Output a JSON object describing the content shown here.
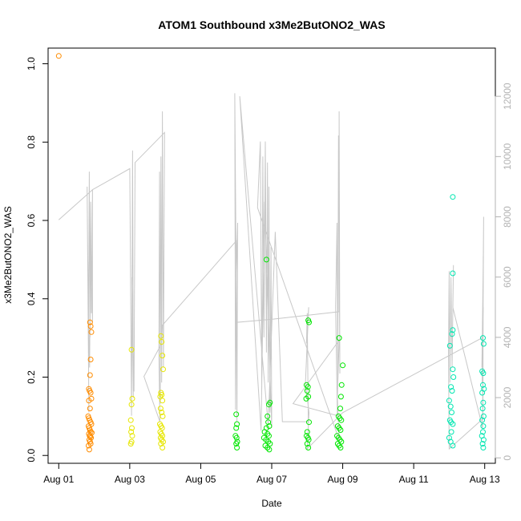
{
  "chart_data": {
    "type": "scatter",
    "title": "ATOM1 Southbound x3Me2ButONO2_WAS",
    "xlabel": "Date",
    "ylabel": "x3Me2ButONO2_WAS",
    "x_ticks": [
      "Aug 01",
      "Aug 03",
      "Aug 05",
      "Aug 07",
      "Aug 09",
      "Aug 11",
      "Aug 13"
    ],
    "x_tick_days": [
      1,
      3,
      5,
      7,
      9,
      11,
      13
    ],
    "xlim": [
      0.7,
      13.3
    ],
    "ylim": [
      -0.02,
      1.04
    ],
    "y_ticks": [
      "0.0",
      "0.2",
      "0.4",
      "0.6",
      "0.8",
      "1.0"
    ],
    "y_tick_values": [
      0,
      0.2,
      0.4,
      0.6,
      0.8,
      1.0
    ],
    "y2_ticks": [
      "0",
      "2000",
      "4000",
      "6000",
      "8000",
      "10000",
      "12000"
    ],
    "y2_tick_values": [
      0,
      2000,
      4000,
      6000,
      8000,
      10000,
      12000
    ],
    "y2lim": [
      -180,
      13600
    ],
    "colors": {
      "orange": "#ff8c00",
      "yellow": "#e6e600",
      "green": "#00e600",
      "teal": "#00e6b0",
      "line": "#c8c8c8",
      "right_axis": "#b3b3b3"
    },
    "series": [
      {
        "color": "#ff8c00",
        "points": [
          [
            1.0,
            1.02
          ],
          [
            1.88,
            0.34
          ],
          [
            1.9,
            0.33
          ],
          [
            1.92,
            0.315
          ],
          [
            1.9,
            0.245
          ],
          [
            1.88,
            0.205
          ],
          [
            1.85,
            0.17
          ],
          [
            1.87,
            0.165
          ],
          [
            1.9,
            0.16
          ],
          [
            1.85,
            0.14
          ],
          [
            1.92,
            0.145
          ],
          [
            1.88,
            0.12
          ],
          [
            1.83,
            0.1
          ],
          [
            1.85,
            0.095
          ],
          [
            1.87,
            0.09
          ],
          [
            1.9,
            0.085
          ],
          [
            1.92,
            0.08
          ],
          [
            1.84,
            0.075
          ],
          [
            1.86,
            0.07
          ],
          [
            1.88,
            0.065
          ],
          [
            1.9,
            0.06
          ],
          [
            1.93,
            0.058
          ],
          [
            1.85,
            0.055
          ],
          [
            1.87,
            0.05
          ],
          [
            1.89,
            0.048
          ],
          [
            1.91,
            0.045
          ],
          [
            1.86,
            0.04
          ],
          [
            1.88,
            0.035
          ],
          [
            1.9,
            0.03
          ],
          [
            1.84,
            0.025
          ],
          [
            1.86,
            0.015
          ]
        ]
      },
      {
        "color": "#e6e600",
        "points": [
          [
            3.05,
            0.27
          ],
          [
            3.07,
            0.145
          ],
          [
            3.05,
            0.13
          ],
          [
            3.03,
            0.09
          ],
          [
            3.06,
            0.07
          ],
          [
            3.04,
            0.06
          ],
          [
            3.07,
            0.05
          ],
          [
            3.05,
            0.035
          ],
          [
            3.03,
            0.03
          ],
          [
            3.88,
            0.305
          ],
          [
            3.9,
            0.29
          ],
          [
            3.92,
            0.255
          ],
          [
            3.94,
            0.22
          ],
          [
            3.88,
            0.16
          ],
          [
            3.9,
            0.155
          ],
          [
            3.86,
            0.15
          ],
          [
            3.92,
            0.14
          ],
          [
            3.87,
            0.12
          ],
          [
            3.9,
            0.11
          ],
          [
            3.93,
            0.1
          ],
          [
            3.85,
            0.08
          ],
          [
            3.88,
            0.075
          ],
          [
            3.91,
            0.07
          ],
          [
            3.86,
            0.06
          ],
          [
            3.89,
            0.055
          ],
          [
            3.92,
            0.05
          ],
          [
            3.87,
            0.045
          ],
          [
            3.9,
            0.04
          ],
          [
            3.94,
            0.035
          ],
          [
            3.88,
            0.03
          ],
          [
            3.92,
            0.02
          ]
        ]
      },
      {
        "color": "#00e600",
        "points": [
          [
            6.0,
            0.105
          ],
          [
            6.02,
            0.08
          ],
          [
            6.0,
            0.07
          ],
          [
            5.98,
            0.05
          ],
          [
            6.01,
            0.045
          ],
          [
            6.03,
            0.035
          ],
          [
            6.0,
            0.03
          ],
          [
            6.02,
            0.02
          ],
          [
            6.85,
            0.5
          ],
          [
            6.95,
            0.135
          ],
          [
            6.92,
            0.13
          ],
          [
            6.88,
            0.1
          ],
          [
            6.9,
            0.085
          ],
          [
            6.93,
            0.075
          ],
          [
            6.85,
            0.07
          ],
          [
            6.8,
            0.06
          ],
          [
            6.88,
            0.055
          ],
          [
            6.92,
            0.05
          ],
          [
            6.78,
            0.045
          ],
          [
            6.84,
            0.04
          ],
          [
            6.9,
            0.035
          ],
          [
            6.95,
            0.03
          ],
          [
            6.82,
            0.025
          ],
          [
            6.88,
            0.02
          ],
          [
            6.93,
            0.015
          ],
          [
            8.03,
            0.345
          ],
          [
            8.05,
            0.34
          ],
          [
            7.98,
            0.18
          ],
          [
            8.02,
            0.175
          ],
          [
            8.0,
            0.165
          ],
          [
            8.03,
            0.15
          ],
          [
            7.97,
            0.145
          ],
          [
            8.05,
            0.085
          ],
          [
            8.0,
            0.06
          ],
          [
            7.98,
            0.05
          ],
          [
            8.02,
            0.045
          ],
          [
            8.04,
            0.04
          ],
          [
            8.0,
            0.03
          ],
          [
            8.03,
            0.02
          ],
          [
            8.9,
            0.3
          ],
          [
            9.0,
            0.23
          ],
          [
            8.97,
            0.18
          ],
          [
            8.95,
            0.15
          ],
          [
            8.93,
            0.12
          ],
          [
            8.88,
            0.1
          ],
          [
            8.92,
            0.095
          ],
          [
            8.96,
            0.09
          ],
          [
            8.86,
            0.075
          ],
          [
            8.9,
            0.07
          ],
          [
            8.94,
            0.065
          ],
          [
            8.84,
            0.05
          ],
          [
            8.88,
            0.045
          ],
          [
            8.92,
            0.04
          ],
          [
            8.96,
            0.035
          ],
          [
            8.86,
            0.03
          ],
          [
            8.9,
            0.025
          ],
          [
            8.94,
            0.02
          ]
        ]
      },
      {
        "color": "#00e6b0",
        "points": [
          [
            12.1,
            0.66
          ],
          [
            12.1,
            0.465
          ],
          [
            12.1,
            0.32
          ],
          [
            12.08,
            0.31
          ],
          [
            12.02,
            0.28
          ],
          [
            12.1,
            0.22
          ],
          [
            12.12,
            0.2
          ],
          [
            12.05,
            0.175
          ],
          [
            12.08,
            0.165
          ],
          [
            12.0,
            0.14
          ],
          [
            12.04,
            0.125
          ],
          [
            12.07,
            0.11
          ],
          [
            12.02,
            0.09
          ],
          [
            12.05,
            0.085
          ],
          [
            12.1,
            0.08
          ],
          [
            12.06,
            0.06
          ],
          [
            12.0,
            0.045
          ],
          [
            12.04,
            0.035
          ],
          [
            12.1,
            0.025
          ],
          [
            12.95,
            0.3
          ],
          [
            12.97,
            0.285
          ],
          [
            12.93,
            0.215
          ],
          [
            12.96,
            0.21
          ],
          [
            12.95,
            0.18
          ],
          [
            12.98,
            0.17
          ],
          [
            12.93,
            0.16
          ],
          [
            12.96,
            0.135
          ],
          [
            12.94,
            0.12
          ],
          [
            12.97,
            0.1
          ],
          [
            12.93,
            0.09
          ],
          [
            12.96,
            0.075
          ],
          [
            12.95,
            0.06
          ],
          [
            12.92,
            0.05
          ],
          [
            12.97,
            0.04
          ],
          [
            12.94,
            0.03
          ],
          [
            12.96,
            0.02
          ]
        ]
      }
    ],
    "line_series": {
      "color": "#c8c8c8",
      "axis": "right",
      "points": [
        [
          1.0,
          7900
        ],
        [
          1.95,
          8900
        ],
        [
          1.95,
          4500
        ],
        [
          1.9,
          7000
        ],
        [
          1.88,
          4000
        ],
        [
          1.86,
          9500
        ],
        [
          1.84,
          4200
        ],
        [
          1.82,
          6500
        ],
        [
          1.85,
          1500
        ],
        [
          1.8,
          9000
        ],
        [
          1.83,
          5000
        ],
        [
          1.87,
          3000
        ],
        [
          1.9,
          8500
        ],
        [
          1.92,
          4800
        ],
        [
          1.95,
          8900
        ],
        [
          3.0,
          9600
        ],
        [
          3.05,
          1400
        ],
        [
          3.08,
          10200
        ],
        [
          3.1,
          2000
        ],
        [
          3.06,
          6000
        ],
        [
          3.12,
          2200
        ],
        [
          3.15,
          9800
        ],
        [
          3.98,
          10800
        ],
        [
          3.95,
          3000
        ],
        [
          3.92,
          11500
        ],
        [
          3.9,
          2500
        ],
        [
          3.88,
          10000
        ],
        [
          3.86,
          1800
        ],
        [
          3.84,
          9500
        ],
        [
          3.82,
          3500
        ],
        [
          3.85,
          1200
        ],
        [
          3.4,
          2700
        ],
        [
          3.9,
          3800
        ],
        [
          3.92,
          4400
        ],
        [
          6.0,
          7200
        ],
        [
          6.02,
          1200
        ],
        [
          6.04,
          7800
        ],
        [
          6.0,
          6000
        ],
        [
          5.98,
          1600
        ],
        [
          5.96,
          12100
        ],
        [
          6.02,
          2800
        ],
        [
          6.03,
          4500
        ],
        [
          7.02,
          4600
        ],
        [
          8.9,
          4850
        ],
        [
          8.9,
          11500
        ],
        [
          8.92,
          2800
        ],
        [
          8.88,
          10700
        ],
        [
          8.86,
          2500
        ],
        [
          8.84,
          7800
        ],
        [
          8.8,
          5000
        ],
        [
          8.85,
          1400
        ],
        [
          7.6,
          1800
        ],
        [
          8.9,
          3900
        ],
        [
          8.85,
          2000
        ],
        [
          8.9,
          600
        ],
        [
          6.6,
          8300
        ],
        [
          6.68,
          10500
        ],
        [
          6.72,
          2300
        ],
        [
          6.75,
          10000
        ],
        [
          6.78,
          4000
        ],
        [
          6.82,
          10500
        ],
        [
          6.85,
          3500
        ],
        [
          6.88,
          9800
        ],
        [
          6.9,
          2500
        ],
        [
          6.92,
          9000
        ],
        [
          6.95,
          1500
        ],
        [
          6.98,
          7000
        ],
        [
          7.0,
          1000
        ],
        [
          6.8,
          8500
        ],
        [
          6.7,
          900
        ],
        [
          6.1,
          12000
        ],
        [
          6.9,
          1100
        ],
        [
          7.1,
          7500
        ],
        [
          7.3,
          1200
        ],
        [
          8.03,
          1200
        ],
        [
          8.0,
          4800
        ],
        [
          7.98,
          3800
        ],
        [
          8.04,
          5000
        ],
        [
          7.95,
          2500
        ],
        [
          8.05,
          1500
        ],
        [
          8.0,
          300
        ],
        [
          9.0,
          1500
        ],
        [
          12.95,
          4000
        ],
        [
          12.97,
          8000
        ],
        [
          12.93,
          2500
        ],
        [
          12.96,
          6500
        ],
        [
          12.92,
          3000
        ],
        [
          12.95,
          4800
        ],
        [
          12.94,
          1000
        ],
        [
          12.1,
          5000
        ],
        [
          12.12,
          6400
        ],
        [
          12.08,
          3000
        ],
        [
          12.05,
          6000
        ],
        [
          12.02,
          2500
        ],
        [
          12.0,
          6200
        ],
        [
          11.98,
          3500
        ],
        [
          12.0,
          300
        ],
        [
          12.95,
          1300
        ],
        [
          12.96,
          6700
        ],
        [
          12.94,
          3000
        ],
        [
          12.96,
          5000
        ]
      ]
    }
  }
}
